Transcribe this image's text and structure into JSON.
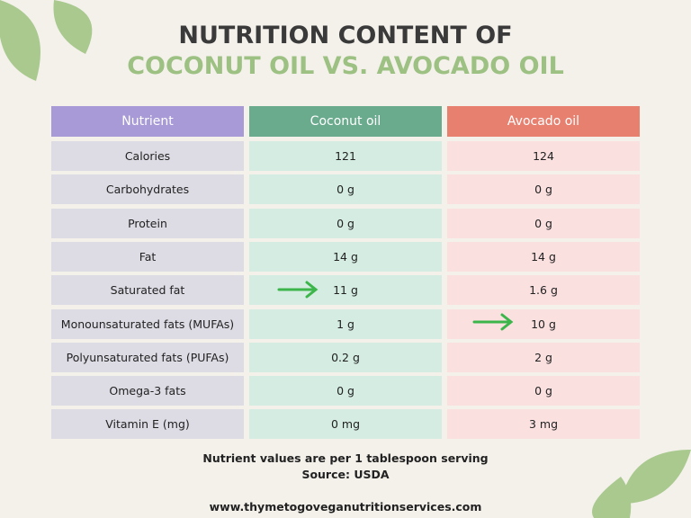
{
  "header": {
    "title_line1": "NUTRITION CONTENT OF",
    "title_line2": "COCONUT OIL VS. AVOCADO OIL"
  },
  "table": {
    "columns": [
      "Nutrient",
      "Coconut oil",
      "Avocado oil"
    ],
    "rows": [
      [
        "Calories",
        "121",
        "124"
      ],
      [
        "Carbohydrates",
        "0 g",
        "0 g"
      ],
      [
        "Protein",
        "0 g",
        "0 g"
      ],
      [
        "Fat",
        "14 g",
        "14 g"
      ],
      [
        "Saturated fat",
        "11 g",
        "1.6 g"
      ],
      [
        "Monounsaturated fats (MUFAs)",
        "1 g",
        "10 g"
      ],
      [
        "Polyunsaturated fats (PUFAs)",
        "0.2 g",
        "2 g"
      ],
      [
        "Omega-3 fats",
        "0 g",
        "0 g"
      ],
      [
        "Vitamin E (mg)",
        "0 mg",
        "3 mg"
      ]
    ]
  },
  "footer": {
    "note": "Nutrient values are per 1 tablespoon serving",
    "source": "Source: USDA",
    "url": "www.thymetogoveganutritionservices.com"
  }
}
